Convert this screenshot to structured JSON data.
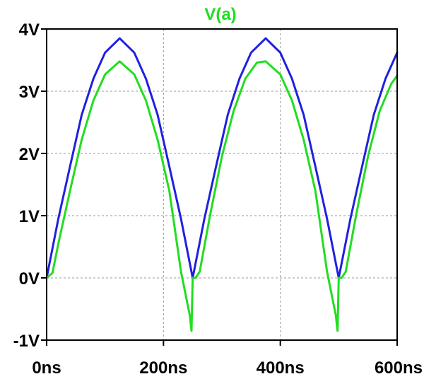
{
  "chart_data": {
    "type": "line",
    "title": "V(a)",
    "title_color": "#22dd22",
    "xlabel": "",
    "ylabel": "",
    "xlim": [
      0,
      600
    ],
    "ylim": [
      -1,
      4
    ],
    "x_unit": "ns",
    "y_unit": "V",
    "x_ticks": [
      0,
      200,
      400,
      600
    ],
    "x_tick_labels": [
      "0ns",
      "200ns",
      "400ns",
      "600ns"
    ],
    "y_ticks": [
      -1,
      0,
      1,
      2,
      3,
      4
    ],
    "y_tick_labels": [
      "-1V",
      "0V",
      "1V",
      "2V",
      "3V",
      "4V"
    ],
    "grid": true,
    "series": [
      {
        "color": "#2020e0",
        "x": [
          0,
          20,
          40,
          60,
          80,
          100,
          125,
          150,
          170,
          190,
          210,
          230,
          250,
          270,
          290,
          310,
          330,
          350,
          375,
          400,
          420,
          440,
          460,
          480,
          500,
          520,
          540,
          560,
          580,
          600
        ],
        "y": [
          0,
          0.95,
          1.79,
          2.62,
          3.2,
          3.62,
          3.85,
          3.62,
          3.2,
          2.62,
          1.79,
          0.95,
          0,
          0.95,
          1.79,
          2.62,
          3.2,
          3.62,
          3.85,
          3.62,
          3.2,
          2.62,
          1.79,
          0.95,
          0,
          0.95,
          1.79,
          2.62,
          3.2,
          3.62
        ]
      },
      {
        "color": "#22dd22",
        "x": [
          0,
          10,
          20,
          40,
          60,
          80,
          100,
          125,
          150,
          170,
          190,
          210,
          230,
          245,
          248,
          250,
          255,
          262,
          280,
          300,
          320,
          340,
          360,
          375,
          400,
          420,
          440,
          460,
          480,
          495,
          498,
          500,
          505,
          512,
          530,
          550,
          570,
          590,
          600
        ],
        "y": [
          0,
          0.08,
          0.55,
          1.4,
          2.22,
          2.85,
          3.27,
          3.48,
          3.27,
          2.85,
          2.22,
          1.4,
          0.1,
          -0.6,
          -0.85,
          0,
          0,
          0.1,
          1.02,
          1.95,
          2.68,
          3.2,
          3.46,
          3.48,
          3.27,
          2.85,
          2.22,
          1.4,
          0.1,
          -0.6,
          -0.85,
          0,
          0,
          0.1,
          1.02,
          1.95,
          2.68,
          3.12,
          3.25
        ]
      }
    ]
  }
}
